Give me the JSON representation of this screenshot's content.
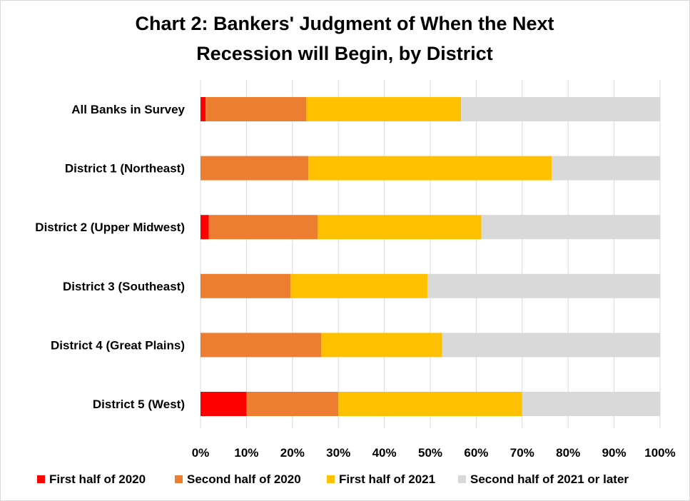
{
  "chart_data": {
    "type": "bar",
    "orientation": "horizontal",
    "stacked": "percent",
    "title_lines": [
      "Chart 2: Bankers' Judgment of When the Next",
      "Recession will Begin, by District"
    ],
    "categories": [
      "All Banks in Survey",
      "District 1 (Northeast)",
      "District 2 (Upper Midwest)",
      "District 3 (Southeast)",
      "District 4 (Great Plains)",
      "District 5 (West)"
    ],
    "series": [
      {
        "name": "First half of 2020",
        "color": "#ff0000",
        "values": [
          1.1,
          0,
          1.8,
          0,
          0,
          10
        ]
      },
      {
        "name": "Second half of 2020",
        "color": "#ed7d31",
        "values": [
          21.9,
          23.5,
          23.7,
          19.6,
          26.3,
          20
        ]
      },
      {
        "name": "First half of 2021",
        "color": "#ffc000",
        "values": [
          33.7,
          52.9,
          35.6,
          29.8,
          26.3,
          40
        ]
      },
      {
        "name": "Second half of 2021 or later",
        "color": "#d9d9d9",
        "values": [
          43.3,
          23.6,
          38.9,
          50.6,
          47.4,
          30
        ]
      }
    ],
    "xlim": [
      0,
      100
    ],
    "x_ticks": [
      "0%",
      "10%",
      "20%",
      "30%",
      "40%",
      "50%",
      "60%",
      "70%",
      "80%",
      "90%",
      "100%"
    ],
    "grid": "vertical",
    "grid_color": "#d9d9d9",
    "legend_position": "bottom"
  }
}
